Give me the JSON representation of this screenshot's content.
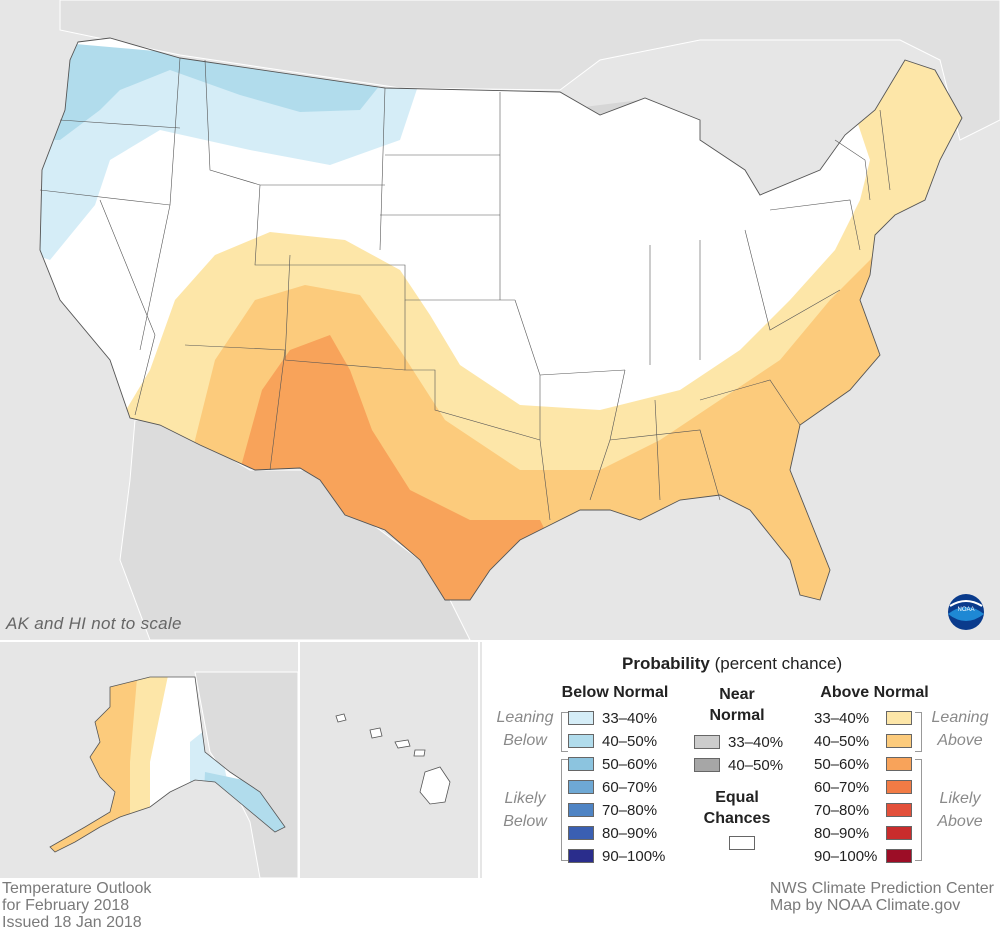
{
  "note": "AK and HI not to scale",
  "footer": {
    "left": [
      "Temperature Outlook",
      "for February 2018",
      "Issued 18 Jan 2018"
    ],
    "right": [
      "NWS Climate Prediction Center",
      "Map by NOAA Climate.gov"
    ]
  },
  "logo": {
    "text": "NOAA"
  },
  "legend": {
    "title_bold": "Probability",
    "title_rest": " (percent chance)",
    "below": {
      "heading": "Below Normal",
      "leaning_label": [
        "Leaning",
        "Below"
      ],
      "likely_label": [
        "Likely",
        "Below"
      ],
      "items": [
        {
          "label": "33–40%",
          "color": "#d5edf7"
        },
        {
          "label": "40–50%",
          "color": "#b1dcec"
        },
        {
          "label": "50–60%",
          "color": "#8cc4df"
        },
        {
          "label": "60–70%",
          "color": "#6ea8d4"
        },
        {
          "label": "70–80%",
          "color": "#4f84c4"
        },
        {
          "label": "80–90%",
          "color": "#3a5fb2"
        },
        {
          "label": "90–100%",
          "color": "#2a2d8c"
        }
      ]
    },
    "near": {
      "heading": [
        "Near",
        "Normal"
      ],
      "items": [
        {
          "label": "33–40%",
          "color": "#cccccc"
        },
        {
          "label": "40–50%",
          "color": "#a6a6a6"
        }
      ],
      "equal_heading": [
        "Equal",
        "Chances"
      ],
      "equal_color": "#ffffff"
    },
    "above": {
      "heading": "Above Normal",
      "leaning_label": [
        "Leaning",
        "Above"
      ],
      "likely_label": [
        "Likely",
        "Above"
      ],
      "items": [
        {
          "label": "33–40%",
          "color": "#fde6a8"
        },
        {
          "label": "40–50%",
          "color": "#fccb7c"
        },
        {
          "label": "50–60%",
          "color": "#f8a35a"
        },
        {
          "label": "60–70%",
          "color": "#f27b45"
        },
        {
          "label": "70–80%",
          "color": "#e3503a"
        },
        {
          "label": "80–90%",
          "color": "#c92c2c"
        },
        {
          "label": "90–100%",
          "color": "#9c0d26"
        }
      ]
    }
  }
}
